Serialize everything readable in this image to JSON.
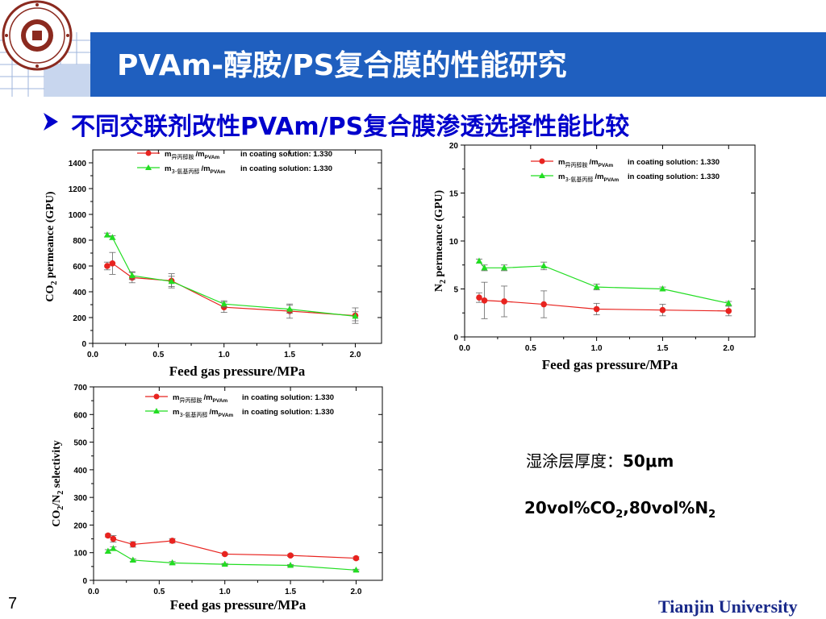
{
  "slide": {
    "title": "PVAm-醇胺/PS复合膜的性能研究",
    "subtitle": "不同交联剂改性PVAm/PS复合膜渗透选择性能比较",
    "page_number": "7",
    "institution": "Tianjin University",
    "note_thickness_label": "湿涂层厚度：",
    "note_thickness_value": "50μm",
    "note_feed": "20vol%CO",
    "note_feed_sub1": "2",
    "note_feed_mid": ",80vol%N",
    "note_feed_sub2": "2",
    "colors": {
      "title_bar": "#1f5fbf",
      "subtitle": "#0000cc",
      "series_red": "#e8231f",
      "series_green": "#22dd22",
      "institution": "#1a2a8a"
    },
    "icons": [
      "university-seal-icon",
      "arrow-bullet-icon"
    ]
  },
  "legend": {
    "red": {
      "m": "m",
      "sub1": "异丙醇胺",
      "slash": "/m",
      "sub2": "PVAm",
      "text": "in coating solution: 1.330"
    },
    "green": {
      "m": "m",
      "sub1": "3-氨基丙醇",
      "slash": "/m",
      "sub2": "PVAm",
      "text": "in coating solution: 1.330"
    }
  },
  "chart_data": [
    {
      "type": "line",
      "xlabel": "Feed gas pressure/MPa",
      "ylabel": "CO2 permeance (GPU)",
      "ylabel_parts": [
        "CO",
        "2",
        " permeance (GPU)"
      ],
      "xlim": [
        0,
        2.2
      ],
      "ylim": [
        0,
        1500
      ],
      "xticks": [
        0.0,
        0.5,
        1.0,
        1.5,
        2.0
      ],
      "xtick_labels": [
        "0.0",
        "0.5",
        "1.0",
        "1.5",
        "2.0"
      ],
      "yticks": [
        0,
        200,
        400,
        600,
        800,
        1000,
        1200,
        1400
      ],
      "ytick_labels": [
        "0",
        "200",
        "400",
        "600",
        "800",
        "1000",
        "1200",
        "1400"
      ],
      "series": [
        {
          "key": "red",
          "x": [
            0.11,
            0.15,
            0.3,
            0.6,
            1.0,
            1.5,
            2.0
          ],
          "y": [
            600,
            620,
            510,
            485,
            280,
            250,
            215
          ],
          "err": [
            30,
            85,
            40,
            55,
            40,
            55,
            60
          ]
        },
        {
          "key": "green",
          "x": [
            0.11,
            0.15,
            0.3,
            0.6,
            1.0,
            1.5,
            2.0
          ],
          "y": [
            840,
            820,
            525,
            480,
            305,
            265,
            210
          ],
          "err": [
            15,
            15,
            30,
            40,
            25,
            30,
            35
          ]
        }
      ]
    },
    {
      "type": "line",
      "xlabel": "Feed gas pressure/MPa",
      "ylabel": "N2 permeance (GPU)",
      "ylabel_parts": [
        "N",
        "2",
        " permeance (GPU)"
      ],
      "xlim": [
        0,
        2.2
      ],
      "ylim": [
        0,
        20
      ],
      "xticks": [
        0.0,
        0.5,
        1.0,
        1.5,
        2.0
      ],
      "xtick_labels": [
        "0.0",
        "0.5",
        "1.0",
        "1.5",
        "2.0"
      ],
      "yticks": [
        0,
        5,
        10,
        15,
        20
      ],
      "ytick_labels": [
        "0",
        "5",
        "10",
        "15",
        "20"
      ],
      "series": [
        {
          "key": "red",
          "x": [
            0.11,
            0.15,
            0.3,
            0.6,
            1.0,
            1.5,
            2.0
          ],
          "y": [
            4.1,
            3.8,
            3.7,
            3.4,
            2.9,
            2.8,
            2.7
          ],
          "err": [
            0.5,
            1.9,
            1.6,
            1.4,
            0.6,
            0.6,
            0.5
          ]
        },
        {
          "key": "green",
          "x": [
            0.11,
            0.15,
            0.3,
            0.6,
            1.0,
            1.5,
            2.0
          ],
          "y": [
            7.9,
            7.2,
            7.2,
            7.4,
            5.2,
            5.0,
            3.5
          ],
          "err": [
            0.2,
            0.3,
            0.3,
            0.4,
            0.3,
            0.2,
            0.2
          ]
        }
      ]
    },
    {
      "type": "line",
      "xlabel": "Feed gas pressure/MPa",
      "ylabel": "CO2/N2 selectivity",
      "ylabel_parts": [
        "CO",
        "2",
        "/N",
        "2",
        " selectivity"
      ],
      "xlim": [
        0,
        2.2
      ],
      "ylim": [
        0,
        700
      ],
      "xticks": [
        0.0,
        0.5,
        1.0,
        1.5,
        2.0
      ],
      "xtick_labels": [
        "0.0",
        "0.5",
        "1.0",
        "1.5",
        "2.0"
      ],
      "yticks": [
        0,
        100,
        200,
        300,
        400,
        500,
        600,
        700
      ],
      "ytick_labels": [
        "0",
        "100",
        "200",
        "300",
        "400",
        "500",
        "600",
        "700"
      ],
      "series": [
        {
          "key": "red",
          "x": [
            0.11,
            0.15,
            0.3,
            0.6,
            1.0,
            1.5,
            2.0
          ],
          "y": [
            162,
            150,
            130,
            143,
            95,
            90,
            80
          ],
          "err": [
            5,
            12,
            10,
            8,
            4,
            4,
            5
          ]
        },
        {
          "key": "green",
          "x": [
            0.11,
            0.15,
            0.3,
            0.6,
            1.0,
            1.5,
            2.0
          ],
          "y": [
            105,
            115,
            73,
            63,
            58,
            54,
            37
          ],
          "err": [
            6,
            6,
            5,
            5,
            3,
            3,
            3
          ]
        }
      ]
    }
  ]
}
